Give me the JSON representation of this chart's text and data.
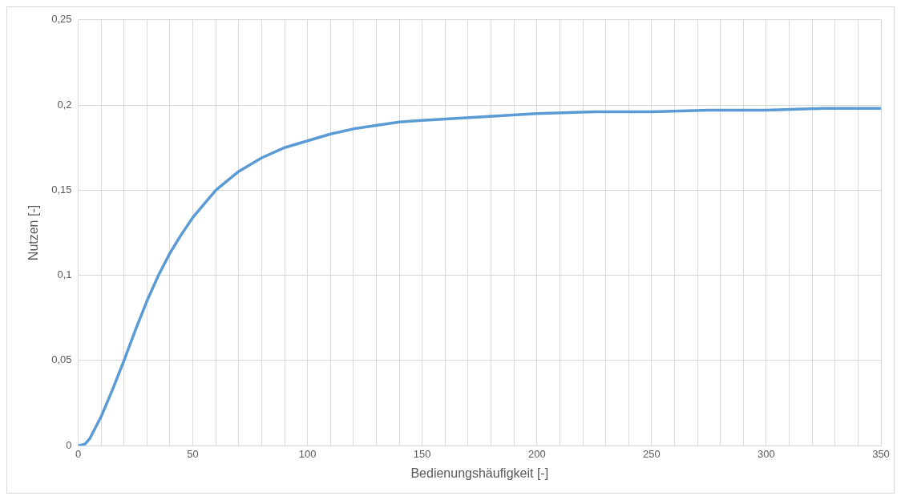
{
  "chart_data": {
    "type": "line",
    "xlabel": "Bedienungshäufigkeit [-]",
    "ylabel": "Nutzen [-]",
    "series": [
      {
        "color": "#5b9bd5",
        "x": [
          0,
          3,
          5,
          10,
          15,
          20,
          25,
          30,
          35,
          40,
          45,
          50,
          60,
          70,
          80,
          90,
          100,
          110,
          120,
          130,
          140,
          150,
          175,
          200,
          225,
          250,
          275,
          300,
          325,
          350
        ],
        "values": [
          0,
          0.001,
          0.004,
          0.017,
          0.033,
          0.05,
          0.068,
          0.085,
          0.1,
          0.113,
          0.124,
          0.134,
          0.15,
          0.161,
          0.169,
          0.175,
          0.179,
          0.183,
          0.186,
          0.188,
          0.19,
          0.191,
          0.193,
          0.195,
          0.196,
          0.196,
          0.197,
          0.197,
          0.198,
          0.198
        ]
      }
    ],
    "xlim": [
      0,
      350
    ],
    "xticks": [
      0,
      {
        "value": 10,
        "label": null
      },
      {
        "value": 20,
        "label": null
      },
      {
        "value": 30,
        "label": null
      },
      {
        "value": 40,
        "label": null
      },
      50,
      {
        "value": 60,
        "label": null
      },
      {
        "value": 70,
        "label": null
      },
      {
        "value": 80,
        "label": null
      },
      {
        "value": 90,
        "label": null
      },
      100,
      {
        "value": 110,
        "label": null
      },
      {
        "value": 120,
        "label": null
      },
      {
        "value": 130,
        "label": null
      },
      {
        "value": 140,
        "label": null
      },
      150,
      {
        "value": 160,
        "label": null
      },
      {
        "value": 170,
        "label": null
      },
      {
        "value": 180,
        "label": null
      },
      {
        "value": 190,
        "label": null
      },
      200,
      {
        "value": 210,
        "label": null
      },
      {
        "value": 220,
        "label": null
      },
      {
        "value": 230,
        "label": null
      },
      {
        "value": 240,
        "label": null
      },
      250,
      {
        "value": 260,
        "label": null
      },
      {
        "value": 270,
        "label": null
      },
      {
        "value": 280,
        "label": null
      },
      {
        "value": 290,
        "label": null
      },
      300,
      {
        "value": 310,
        "label": null
      },
      {
        "value": 320,
        "label": null
      },
      {
        "value": 330,
        "label": null
      },
      {
        "value": 340,
        "label": null
      },
      350
    ],
    "ylim": [
      0,
      0.25
    ],
    "yticks": [
      0,
      {
        "value": 0.05,
        "label": "0,05"
      },
      {
        "value": 0.1,
        "label": "0,1"
      },
      {
        "value": 0.15,
        "label": "0,15"
      },
      {
        "value": 0.2,
        "label": "0,2"
      },
      {
        "value": 0.25,
        "label": "0,25"
      }
    ],
    "grid": true,
    "legend": false,
    "marker": "none",
    "line_style": "solid"
  }
}
